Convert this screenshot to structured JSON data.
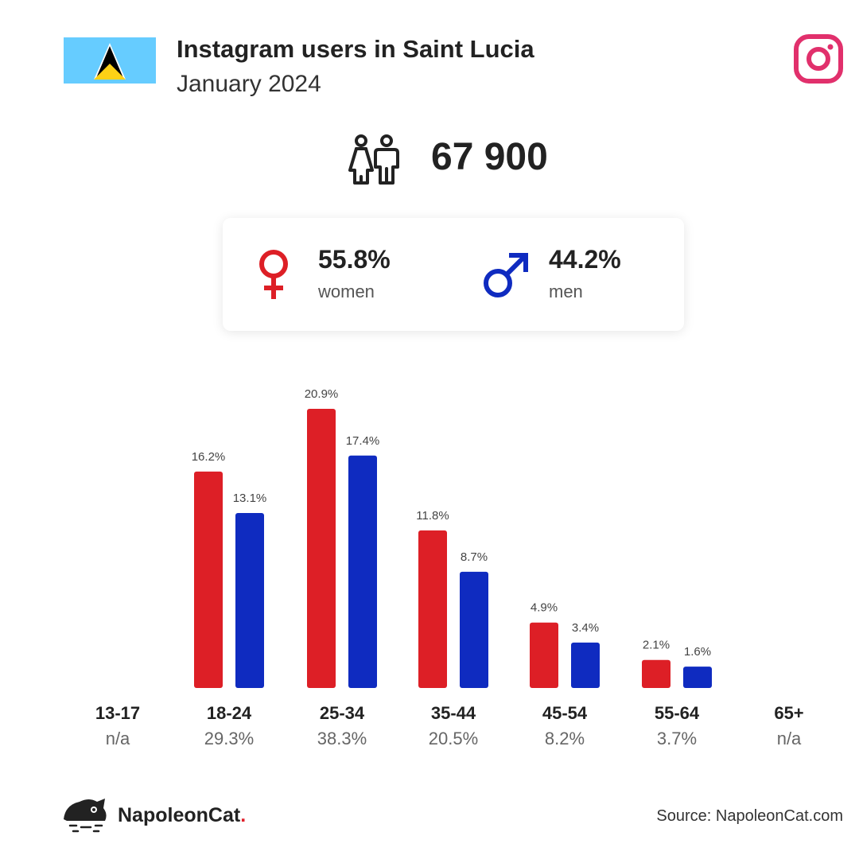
{
  "header": {
    "title": "Instagram users in Saint Lucia",
    "subtitle": "January 2024",
    "flag_icon": "saint-lucia-flag-icon",
    "platform_icon": "instagram-icon"
  },
  "total": {
    "icon": "people-icon",
    "value": "67 900"
  },
  "gender": {
    "women": {
      "percent": "55.8%",
      "label": "women",
      "icon": "female-symbol-icon"
    },
    "men": {
      "percent": "44.2%",
      "label": "men",
      "icon": "male-symbol-icon"
    }
  },
  "colors": {
    "women": "#DD1F26",
    "men": "#0F2BC0",
    "instagram": "#E1306C",
    "flag_blue": "#66CCFF",
    "flag_yellow": "#FCD116"
  },
  "chart_data": {
    "type": "bar",
    "categories": [
      "13-17",
      "18-24",
      "25-34",
      "35-44",
      "45-54",
      "55-64",
      "65+"
    ],
    "category_totals": [
      "n/a",
      "29.3%",
      "38.3%",
      "20.5%",
      "8.2%",
      "3.7%",
      "n/a"
    ],
    "series": [
      {
        "name": "women",
        "values": [
          null,
          16.2,
          20.9,
          11.8,
          4.9,
          2.1,
          null
        ],
        "labels": [
          "",
          "16.2%",
          "20.9%",
          "11.8%",
          "4.9%",
          "2.1%",
          ""
        ]
      },
      {
        "name": "men",
        "values": [
          null,
          13.1,
          17.4,
          8.7,
          3.4,
          1.6,
          null
        ],
        "labels": [
          "",
          "13.1%",
          "17.4%",
          "8.7%",
          "3.4%",
          "1.6%",
          ""
        ]
      }
    ],
    "ylim": [
      0,
      20.9
    ],
    "grid": false
  },
  "footer": {
    "logo_text": "NapoleonCat",
    "logo_dot": ".",
    "logo_icon": "napoleoncat-logo-icon",
    "source": "Source: NapoleonCat.com"
  }
}
